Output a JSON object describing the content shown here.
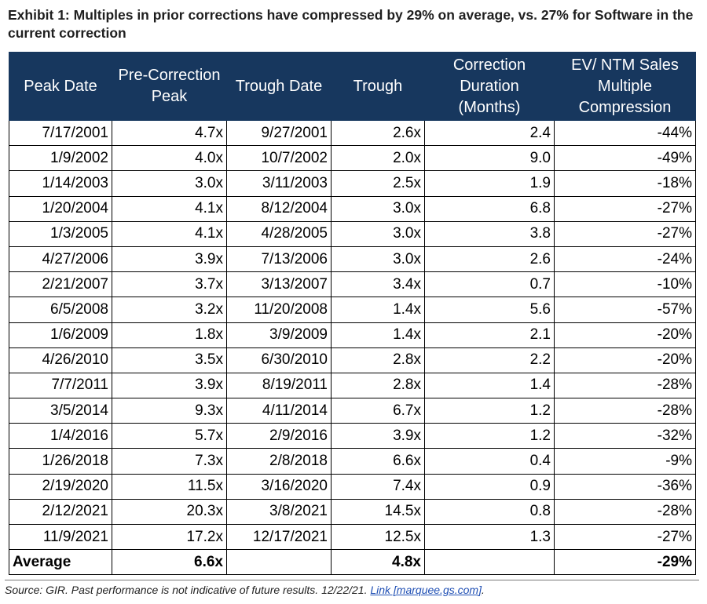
{
  "title": "Exhibit 1: Multiples in prior corrections have compressed by 29% on average, vs. 27% for Software in the current correction",
  "chart_data": {
    "type": "table",
    "columns": [
      "Peak Date",
      "Pre-Correction Peak",
      "Trough Date",
      "Trough",
      "Correction Duration (Months)",
      "EV/ NTM Sales Multiple Compression"
    ],
    "rows": [
      [
        "7/17/2001",
        "4.7x",
        "9/27/2001",
        "2.6x",
        "2.4",
        "-44%"
      ],
      [
        "1/9/2002",
        "4.0x",
        "10/7/2002",
        "2.0x",
        "9.0",
        "-49%"
      ],
      [
        "1/14/2003",
        "3.0x",
        "3/11/2003",
        "2.5x",
        "1.9",
        "-18%"
      ],
      [
        "1/20/2004",
        "4.1x",
        "8/12/2004",
        "3.0x",
        "6.8",
        "-27%"
      ],
      [
        "1/3/2005",
        "4.1x",
        "4/28/2005",
        "3.0x",
        "3.8",
        "-27%"
      ],
      [
        "4/27/2006",
        "3.9x",
        "7/13/2006",
        "3.0x",
        "2.6",
        "-24%"
      ],
      [
        "2/21/2007",
        "3.7x",
        "3/13/2007",
        "3.4x",
        "0.7",
        "-10%"
      ],
      [
        "6/5/2008",
        "3.2x",
        "11/20/2008",
        "1.4x",
        "5.6",
        "-57%"
      ],
      [
        "1/6/2009",
        "1.8x",
        "3/9/2009",
        "1.4x",
        "2.1",
        "-20%"
      ],
      [
        "4/26/2010",
        "3.5x",
        "6/30/2010",
        "2.8x",
        "2.2",
        "-20%"
      ],
      [
        "7/7/2011",
        "3.9x",
        "8/19/2011",
        "2.8x",
        "1.4",
        "-28%"
      ],
      [
        "3/5/2014",
        "9.3x",
        "4/11/2014",
        "6.7x",
        "1.2",
        "-28%"
      ],
      [
        "1/4/2016",
        "5.7x",
        "2/9/2016",
        "3.9x",
        "1.2",
        "-32%"
      ],
      [
        "1/26/2018",
        "7.3x",
        "2/8/2018",
        "6.6x",
        "0.4",
        "-9%"
      ],
      [
        "2/19/2020",
        "11.5x",
        "3/16/2020",
        "7.4x",
        "0.9",
        "-36%"
      ],
      [
        "2/12/2021",
        "20.3x",
        "3/8/2021",
        "14.5x",
        "0.8",
        "-28%"
      ],
      [
        "11/9/2021",
        "17.2x",
        "12/17/2021",
        "12.5x",
        "1.3",
        "-27%"
      ]
    ],
    "footer": [
      "Average",
      "6.6x",
      "",
      "4.8x",
      "",
      "-29%"
    ]
  },
  "source": {
    "text": "Source: GIR. Past performance is not indicative of future results. 12/22/21. ",
    "link": "Link [marquee.gs.com]",
    "end": "."
  }
}
